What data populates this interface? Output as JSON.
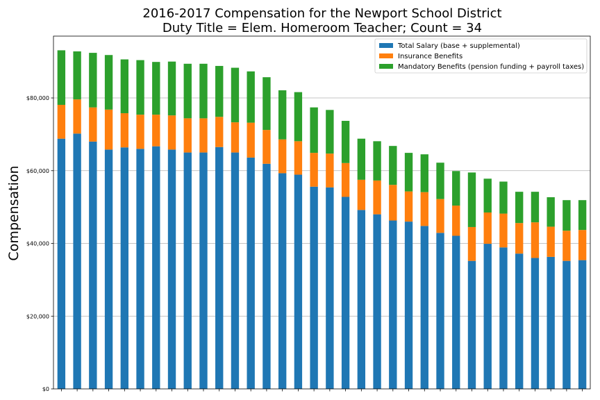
{
  "chart_data": {
    "type": "bar",
    "stacked": true,
    "title": "2016-2017 Compensation for the Newport School District",
    "subtitle": "Duty Title = Elem. Homeroom Teacher; Count = 34",
    "xlabel": "",
    "ylabel": "Compensation",
    "ylim": [
      0,
      97000
    ],
    "yticks": [
      0,
      20000,
      40000,
      60000,
      80000
    ],
    "ytick_labels": [
      "$0",
      "$20,000",
      "$40,000",
      "$60,000",
      "$80,000"
    ],
    "grid": "horizontal",
    "legend_position": "top-right",
    "series": [
      {
        "name": "Total Salary (base + supplemental)",
        "color": "#1f77b4",
        "values": [
          68800,
          70200,
          68000,
          65800,
          66400,
          66000,
          66700,
          65800,
          65000,
          65000,
          66500,
          65000,
          63600,
          61900,
          59300,
          58900,
          55600,
          55400,
          52800,
          49200,
          48000,
          46300,
          46000,
          44800,
          42900,
          42100,
          35200,
          39900,
          38900,
          37200,
          36000,
          36300,
          35200,
          35400
        ]
      },
      {
        "name": "Insurance Benefits",
        "color": "#ff7f0e",
        "values": [
          9300,
          9400,
          9400,
          11000,
          9400,
          9400,
          8700,
          9400,
          9400,
          9400,
          8300,
          8300,
          9600,
          9300,
          9300,
          9200,
          9300,
          9300,
          9300,
          8300,
          9300,
          9800,
          8300,
          9300,
          9300,
          8300,
          9300,
          8600,
          9300,
          8400,
          9800,
          8300,
          8300,
          8300
        ]
      },
      {
        "name": "Mandatory Benefits (pension funding + payroll taxes)",
        "color": "#2ca02c",
        "values": [
          15000,
          13200,
          15000,
          15000,
          14800,
          15000,
          14500,
          14800,
          15000,
          15000,
          14000,
          15000,
          14100,
          14500,
          13500,
          13500,
          12500,
          12000,
          11600,
          11300,
          10800,
          10700,
          10600,
          10400,
          10000,
          9500,
          15000,
          9300,
          8800,
          8600,
          8400,
          8100,
          8400,
          8200
        ]
      }
    ]
  }
}
